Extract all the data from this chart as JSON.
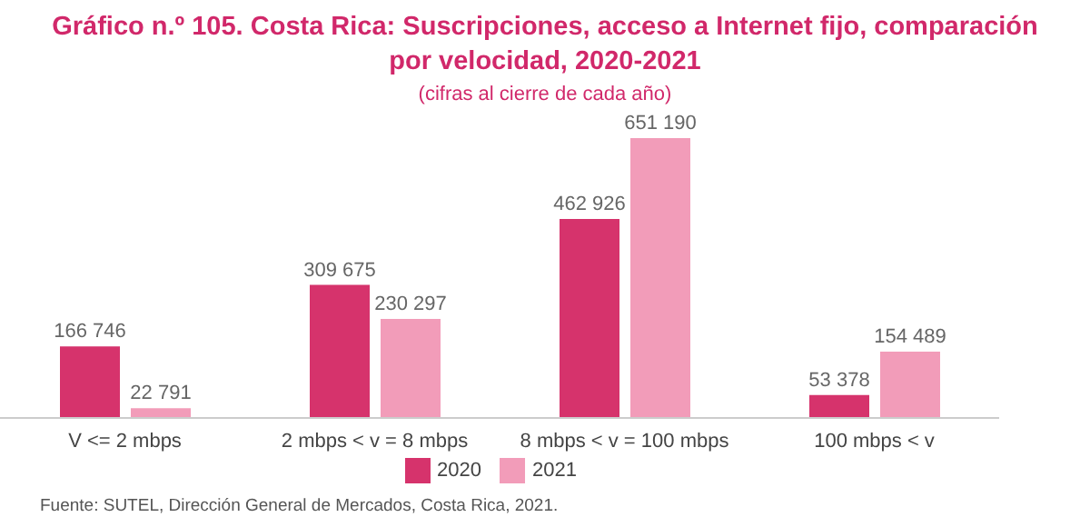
{
  "chart_data": {
    "type": "bar",
    "title": "Gráfico n.º 105. Costa Rica: Suscripciones, acceso a Internet fijo, comparación por velocidad, 2020-2021",
    "subtitle": "(cifras al cierre de cada año)",
    "categories": [
      "V <= 2 mbps",
      "2 mbps < v = 8 mbps",
      "8 mbps < v = 100 mbps",
      "100 mbps < v"
    ],
    "series": [
      {
        "name": "2020",
        "color": "#d6336c",
        "values": [
          166746,
          309675,
          462926,
          53378
        ],
        "value_labels": [
          "166 746",
          "309 675",
          "462 926",
          "53 378"
        ]
      },
      {
        "name": "2021",
        "color": "#f29cb9",
        "values": [
          22791,
          230297,
          651190,
          154489
        ],
        "value_labels": [
          "22 791",
          "230 297",
          "651 190",
          "154 489"
        ]
      }
    ],
    "legend": "bottom",
    "annotations": [
      "Fuente: SUTEL, Dirección General de Mercados, Costa Rica, 2021."
    ]
  }
}
